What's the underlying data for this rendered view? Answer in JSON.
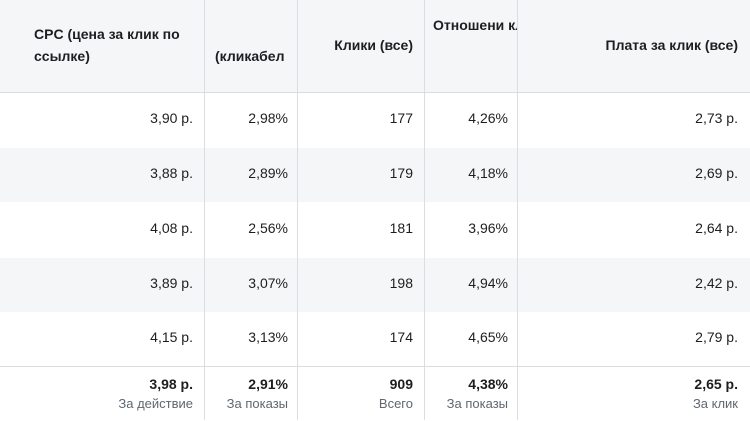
{
  "columns": [
    {
      "key": "cpc",
      "header": "CPC (цена за клик по ссылке)"
    },
    {
      "key": "ctr",
      "header": "(кликабел"
    },
    {
      "key": "clicks",
      "header": "Клики (все)"
    },
    {
      "key": "ratio",
      "header": "Отношени кликов показа"
    },
    {
      "key": "cpc_all",
      "header": "Плата за клик (все)"
    }
  ],
  "rows": [
    {
      "cpc": "3,90 р.",
      "ctr": "2,98%",
      "clicks": "177",
      "ratio": "4,26%",
      "cpc_all": "2,73 р."
    },
    {
      "cpc": "3,88 р.",
      "ctr": "2,89%",
      "clicks": "179",
      "ratio": "4,18%",
      "cpc_all": "2,69 р."
    },
    {
      "cpc": "4,08 р.",
      "ctr": "2,56%",
      "clicks": "181",
      "ratio": "3,96%",
      "cpc_all": "2,64 р."
    },
    {
      "cpc": "3,89 р.",
      "ctr": "3,07%",
      "clicks": "198",
      "ratio": "4,94%",
      "cpc_all": "2,42 р."
    },
    {
      "cpc": "4,15 р.",
      "ctr": "3,13%",
      "clicks": "174",
      "ratio": "4,65%",
      "cpc_all": "2,79 р."
    }
  ],
  "totals": {
    "cpc": {
      "value": "3,98 р.",
      "label": "За действие"
    },
    "ctr": {
      "value": "2,91%",
      "label": "За показы"
    },
    "clicks": {
      "value": "909",
      "label": "Всего"
    },
    "ratio": {
      "value": "4,38%",
      "label": "За показы"
    },
    "cpc_all": {
      "value": "2,65 р.",
      "label": "За клик"
    }
  }
}
